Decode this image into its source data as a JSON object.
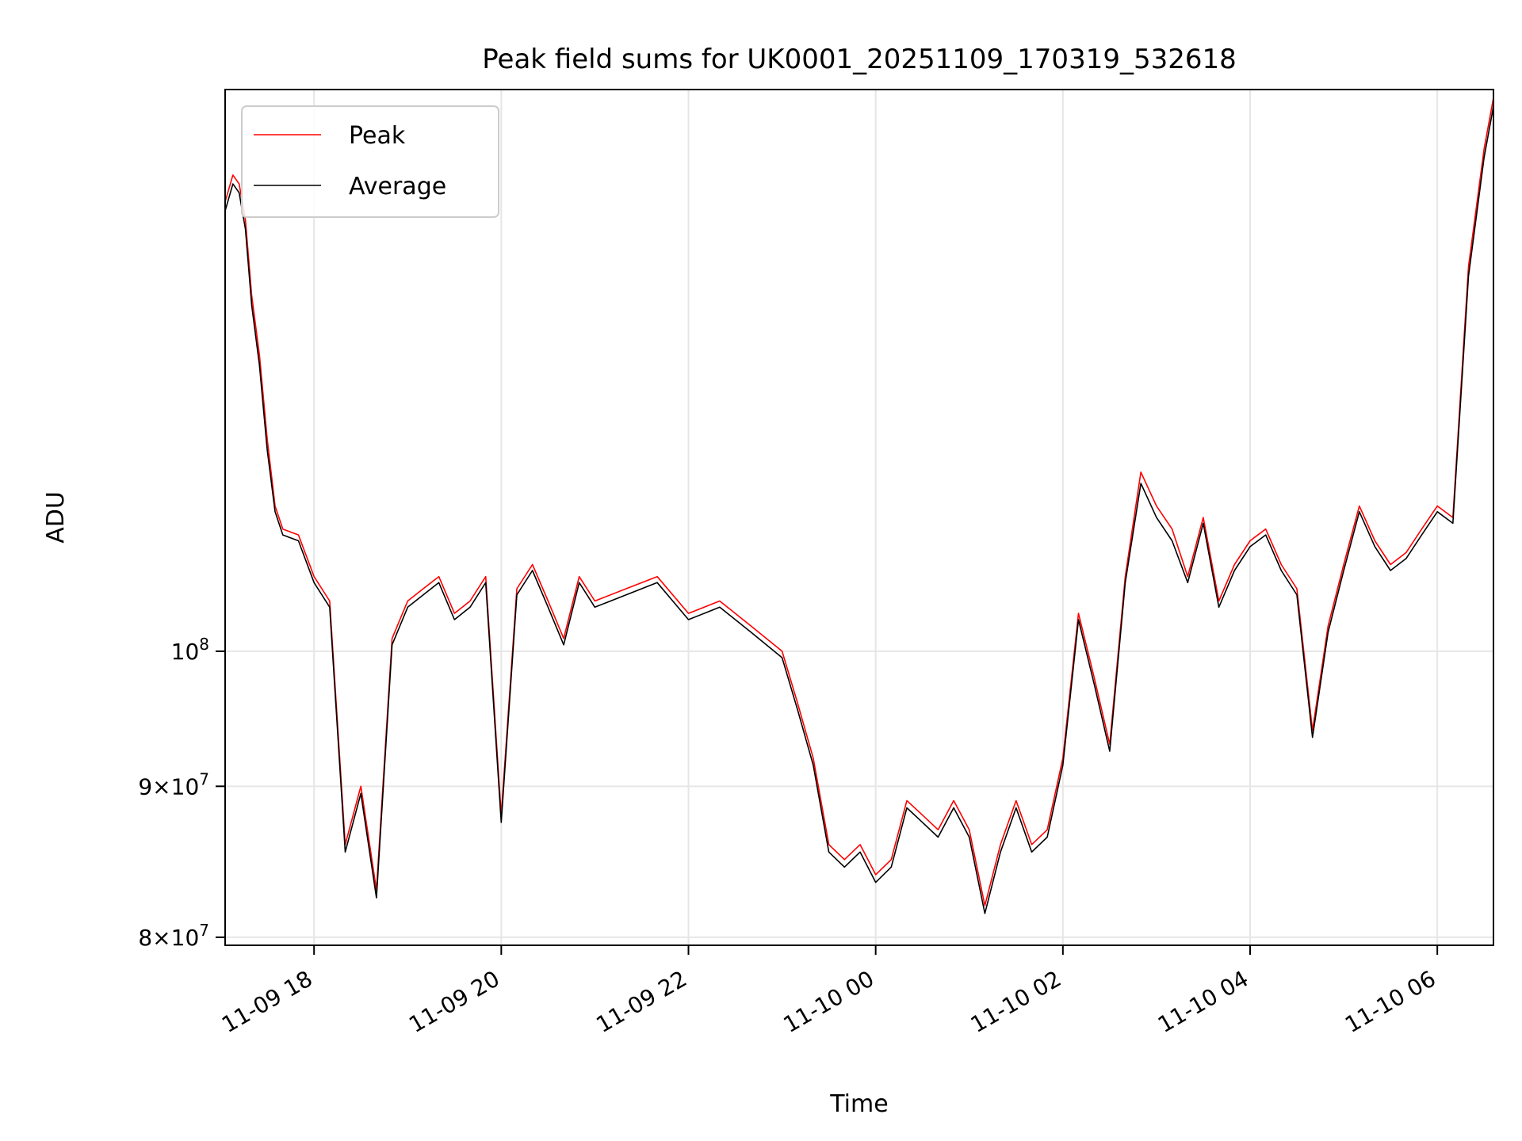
{
  "chart_data": {
    "type": "line",
    "title": "Peak field sums for UK0001_20251109_170319_532618",
    "xlabel": "Time",
    "ylabel": "ADU",
    "yscale": "log",
    "grid": true,
    "legend_position": "top-left",
    "xlim": [
      "2025-11-09 17:03",
      "2025-11-10 06:36"
    ],
    "ylim": [
      79500000,
      155000000
    ],
    "x_ticks": [
      {
        "value": "2025-11-09 18:00",
        "label": "11-09 18"
      },
      {
        "value": "2025-11-09 20:00",
        "label": "11-09 20"
      },
      {
        "value": "2025-11-09 22:00",
        "label": "11-09 22"
      },
      {
        "value": "2025-11-10 00:00",
        "label": "11-10 00"
      },
      {
        "value": "2025-11-10 02:00",
        "label": "11-10 02"
      },
      {
        "value": "2025-11-10 04:00",
        "label": "11-10 04"
      },
      {
        "value": "2025-11-10 06:00",
        "label": "11-10 06"
      }
    ],
    "y_ticks": [
      {
        "value": 100000000,
        "mantissa": "",
        "exponent": "8"
      },
      {
        "value": 90000000,
        "mantissa": "9",
        "exponent": "7"
      },
      {
        "value": 80000000,
        "mantissa": "8",
        "exponent": "7"
      }
    ],
    "x": [
      "2025-11-09 17:03",
      "2025-11-09 17:08",
      "2025-11-09 17:12",
      "2025-11-09 17:16",
      "2025-11-09 17:20",
      "2025-11-09 17:25",
      "2025-11-09 17:30",
      "2025-11-09 17:35",
      "2025-11-09 17:40",
      "2025-11-09 17:50",
      "2025-11-09 18:00",
      "2025-11-09 18:10",
      "2025-11-09 18:20",
      "2025-11-09 18:30",
      "2025-11-09 18:40",
      "2025-11-09 18:50",
      "2025-11-09 19:00",
      "2025-11-09 19:10",
      "2025-11-09 19:20",
      "2025-11-09 19:30",
      "2025-11-09 19:40",
      "2025-11-09 19:50",
      "2025-11-09 20:00",
      "2025-11-09 20:10",
      "2025-11-09 20:20",
      "2025-11-09 20:30",
      "2025-11-09 20:40",
      "2025-11-09 20:50",
      "2025-11-09 21:00",
      "2025-11-09 21:20",
      "2025-11-09 21:40",
      "2025-11-09 22:00",
      "2025-11-09 22:20",
      "2025-11-09 22:40",
      "2025-11-09 23:00",
      "2025-11-09 23:10",
      "2025-11-09 23:20",
      "2025-11-09 23:30",
      "2025-11-09 23:40",
      "2025-11-09 23:50",
      "2025-11-10 00:00",
      "2025-11-10 00:10",
      "2025-11-10 00:20",
      "2025-11-10 00:30",
      "2025-11-10 00:40",
      "2025-11-10 00:50",
      "2025-11-10 01:00",
      "2025-11-10 01:10",
      "2025-11-10 01:20",
      "2025-11-10 01:30",
      "2025-11-10 01:40",
      "2025-11-10 01:50",
      "2025-11-10 02:00",
      "2025-11-10 02:10",
      "2025-11-10 02:20",
      "2025-11-10 02:30",
      "2025-11-10 02:40",
      "2025-11-10 02:50",
      "2025-11-10 03:00",
      "2025-11-10 03:10",
      "2025-11-10 03:20",
      "2025-11-10 03:30",
      "2025-11-10 03:40",
      "2025-11-10 03:50",
      "2025-11-10 04:00",
      "2025-11-10 04:10",
      "2025-11-10 04:20",
      "2025-11-10 04:30",
      "2025-11-10 04:40",
      "2025-11-10 04:50",
      "2025-11-10 05:00",
      "2025-11-10 05:10",
      "2025-11-10 05:20",
      "2025-11-10 05:30",
      "2025-11-10 05:40",
      "2025-11-10 05:50",
      "2025-11-10 06:00",
      "2025-11-10 06:10",
      "2025-11-10 06:20",
      "2025-11-10 06:30",
      "2025-11-10 06:36"
    ],
    "series": [
      {
        "name": "Peak",
        "color": "#ff0000",
        "values": [
          142000000,
          145000000,
          144000000,
          140000000,
          132000000,
          126000000,
          118000000,
          112000000,
          110000000,
          109500000,
          106000000,
          104000000,
          86000000,
          90000000,
          83000000,
          101000000,
          104000000,
          105000000,
          106000000,
          103000000,
          104000000,
          106000000,
          88000000,
          105000000,
          107000000,
          104000000,
          101000000,
          106000000,
          104000000,
          105000000,
          106000000,
          103000000,
          104000000,
          102000000,
          100000000,
          96000000,
          92000000,
          86000000,
          85000000,
          86000000,
          84000000,
          85000000,
          89000000,
          88000000,
          87000000,
          89000000,
          87000000,
          82000000,
          86000000,
          89000000,
          86000000,
          87000000,
          92000000,
          103000000,
          98000000,
          93000000,
          106000000,
          115000000,
          112000000,
          110000000,
          106000000,
          111000000,
          104000000,
          107000000,
          109000000,
          110000000,
          107000000,
          105000000,
          94000000,
          102000000,
          107000000,
          112000000,
          109000000,
          107000000,
          108000000,
          110000000,
          112000000,
          111000000,
          135000000,
          148000000,
          154000000
        ]
      },
      {
        "name": "Average",
        "color": "#000000",
        "values": [
          141000000,
          144000000,
          143000000,
          139000000,
          131000000,
          125000000,
          117000000,
          111500000,
          109500000,
          109000000,
          105500000,
          103500000,
          85500000,
          89500000,
          82500000,
          100500000,
          103500000,
          104500000,
          105500000,
          102500000,
          103500000,
          105500000,
          87500000,
          104500000,
          106500000,
          103500000,
          100500000,
          105500000,
          103500000,
          104500000,
          105500000,
          102500000,
          103500000,
          101500000,
          99500000,
          95500000,
          91500000,
          85500000,
          84500000,
          85500000,
          83500000,
          84500000,
          88500000,
          87500000,
          86500000,
          88500000,
          86500000,
          81500000,
          85500000,
          88500000,
          85500000,
          86500000,
          91500000,
          102500000,
          97500000,
          92500000,
          105500000,
          114000000,
          111000000,
          109000000,
          105500000,
          110500000,
          103500000,
          106500000,
          108500000,
          109500000,
          106500000,
          104500000,
          93500000,
          101500000,
          106500000,
          111500000,
          108500000,
          106500000,
          107500000,
          109500000,
          111500000,
          110500000,
          134000000,
          147000000,
          153000000
        ]
      }
    ]
  }
}
